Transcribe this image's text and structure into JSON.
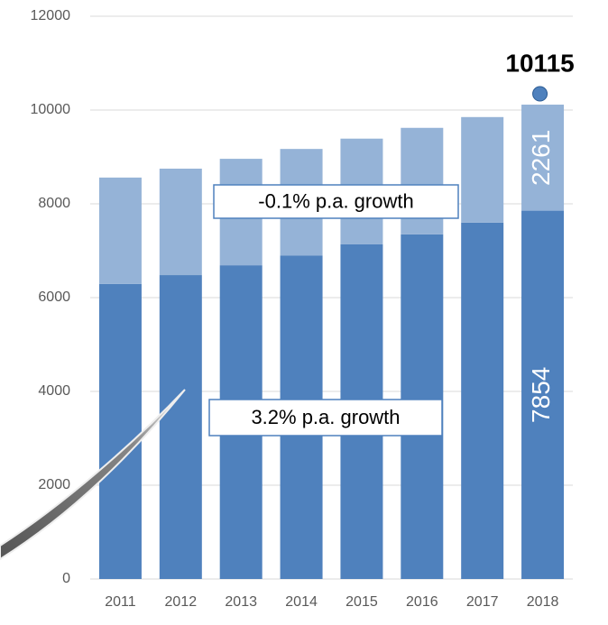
{
  "chart_data": {
    "type": "stacked_bar",
    "categories": [
      "2011",
      "2012",
      "2013",
      "2014",
      "2015",
      "2016",
      "2017",
      "2018"
    ],
    "series": [
      {
        "color": "#4f81bd",
        "values": [
          6290,
          6480,
          6690,
          6900,
          7140,
          7350,
          7600,
          7854
        ]
      },
      {
        "color": "#95b3d7",
        "values": [
          2270,
          2270,
          2270,
          2270,
          2250,
          2270,
          2250,
          2261
        ]
      }
    ],
    "total": 10115,
    "annotations": [
      "-0.1% p.a. growth",
      "3.2% p.a. growth"
    ],
    "ylim": [
      0,
      12000
    ],
    "yticks": [
      0,
      2000,
      4000,
      6000,
      8000,
      10000,
      12000
    ],
    "grid": true
  }
}
